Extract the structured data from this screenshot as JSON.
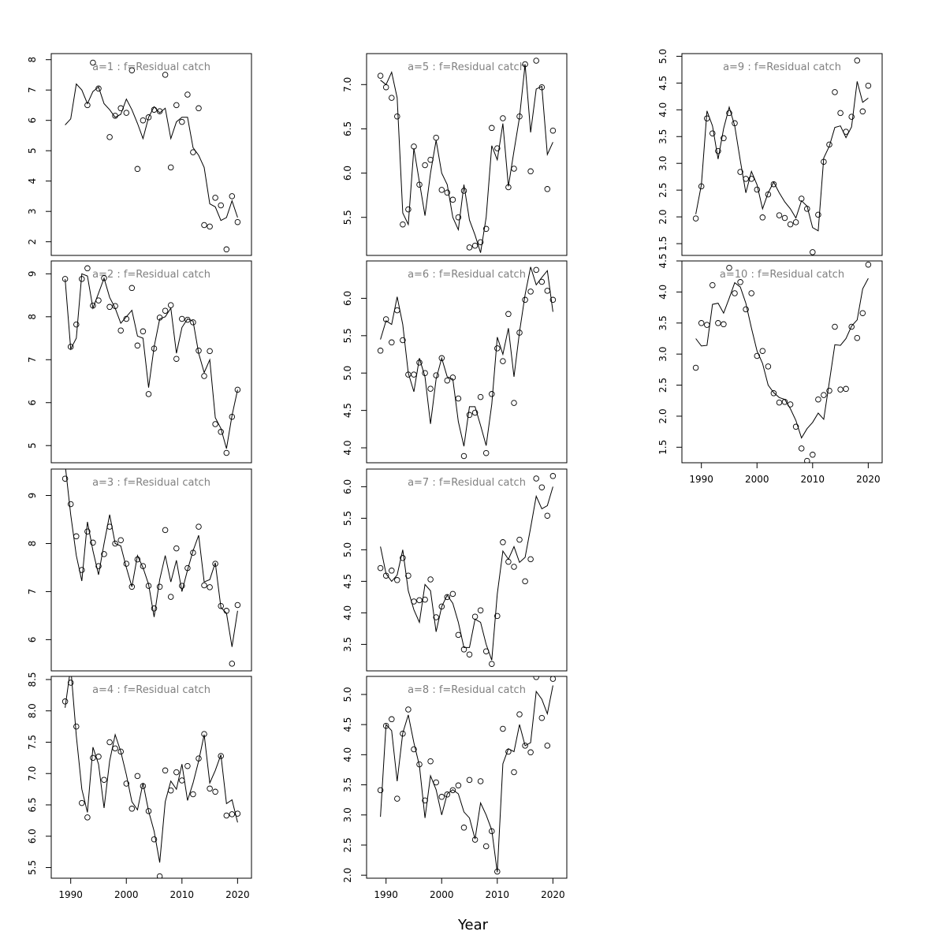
{
  "chart_data": {
    "type": "scatter",
    "xlabel": "Year",
    "x_years": [
      1989,
      1990,
      1991,
      1992,
      1993,
      1994,
      1995,
      1996,
      1997,
      1998,
      1999,
      2000,
      2001,
      2002,
      2003,
      2004,
      2005,
      2006,
      2007,
      2008,
      2009,
      2010,
      2011,
      2012,
      2013,
      2014,
      2015,
      2016,
      2017,
      2018,
      2019,
      2020
    ],
    "xlim": [
      1986.5,
      2022.5
    ],
    "xticks": [
      1990,
      2000,
      2010,
      2020
    ],
    "panels": [
      {
        "title": "a=1  :  f=Residual catch",
        "ylim": [
          1.55,
          8.2
        ],
        "yticks": [
          "2",
          "3",
          "4",
          "5",
          "6",
          "7",
          "8"
        ],
        "ytick_values": [
          2,
          3,
          4,
          5,
          6,
          7,
          8
        ],
        "points": [
          null,
          null,
          null,
          null,
          6.5,
          7.9,
          7.05,
          null,
          5.45,
          6.15,
          6.4,
          6.25,
          7.65,
          4.4,
          6.0,
          6.1,
          6.35,
          6.3,
          7.5,
          4.45,
          6.5,
          5.95,
          6.85,
          4.95,
          6.4,
          2.55,
          2.5,
          3.45,
          3.2,
          1.75,
          3.5,
          2.65
        ],
        "line": [
          5.85,
          6.05,
          7.2,
          7.0,
          6.55,
          6.95,
          7.1,
          6.55,
          6.35,
          6.1,
          6.2,
          6.7,
          6.35,
          5.9,
          5.4,
          6.1,
          6.45,
          6.25,
          6.4,
          5.4,
          5.95,
          6.1,
          6.1,
          5.1,
          4.85,
          4.45,
          3.25,
          3.15,
          2.7,
          2.8,
          3.35,
          2.8
        ]
      },
      {
        "title": "a=2  :  f=Residual catch",
        "ylim": [
          4.6,
          9.3
        ],
        "yticks": [
          "5",
          "6",
          "7",
          "8",
          "9"
        ],
        "ytick_values": [
          5,
          6,
          7,
          8,
          9
        ],
        "points": [
          8.88,
          7.3,
          7.82,
          8.88,
          9.13,
          8.26,
          8.38,
          8.9,
          8.23,
          8.25,
          7.68,
          7.95,
          8.67,
          7.33,
          7.66,
          6.2,
          7.26,
          7.98,
          8.14,
          8.27,
          7.02,
          7.95,
          7.93,
          7.87,
          7.21,
          6.62,
          7.2,
          5.5,
          5.32,
          4.83,
          5.67,
          6.3
        ],
        "line": [
          8.88,
          7.25,
          7.5,
          9.0,
          8.95,
          8.2,
          8.55,
          8.9,
          8.45,
          8.2,
          7.85,
          8.0,
          8.15,
          7.55,
          7.5,
          6.35,
          7.3,
          7.95,
          8.0,
          8.2,
          7.15,
          7.75,
          7.95,
          7.9,
          7.15,
          6.7,
          7.0,
          5.65,
          5.4,
          4.93,
          5.7,
          6.3
        ]
      },
      {
        "title": "a=3  :  f=Residual catch",
        "ylim": [
          5.35,
          9.55
        ],
        "yticks": [
          "6",
          "7",
          "8",
          "9"
        ],
        "ytick_values": [
          6,
          7,
          8,
          9
        ],
        "points": [
          9.35,
          8.82,
          8.15,
          7.45,
          8.25,
          8.02,
          7.53,
          7.78,
          8.35,
          8.0,
          8.07,
          7.58,
          7.1,
          7.67,
          7.53,
          7.12,
          6.65,
          7.1,
          8.28,
          6.89,
          7.9,
          7.12,
          7.49,
          7.81,
          8.35,
          7.13,
          7.09,
          7.58,
          6.7,
          6.6,
          5.5,
          6.72
        ],
        "line": [
          9.65,
          8.6,
          7.75,
          7.22,
          8.45,
          7.85,
          7.35,
          8.0,
          8.6,
          8.0,
          7.95,
          7.5,
          7.1,
          7.75,
          7.5,
          7.15,
          6.47,
          7.25,
          7.75,
          7.2,
          7.65,
          7.0,
          7.45,
          7.85,
          8.17,
          7.2,
          7.25,
          7.6,
          6.67,
          6.55,
          5.85,
          6.6
        ]
      },
      {
        "title": "a=4  :  f=Residual catch",
        "ylim": [
          5.33,
          8.55
        ],
        "yticks": [
          "5.5",
          "6.0",
          "6.5",
          "7.0",
          "7.5",
          "8.0",
          "8.5"
        ],
        "ytick_values": [
          5.5,
          6.0,
          6.5,
          7.0,
          7.5,
          8.0,
          8.5
        ],
        "points": [
          8.15,
          8.45,
          7.75,
          6.53,
          6.3,
          7.25,
          7.27,
          6.9,
          7.5,
          7.4,
          7.35,
          6.84,
          6.44,
          6.96,
          6.8,
          6.4,
          5.95,
          5.36,
          7.05,
          6.73,
          7.02,
          6.89,
          7.12,
          6.67,
          7.24,
          7.63,
          6.76,
          6.71,
          7.28,
          6.33,
          6.35,
          6.36
        ],
        "line": [
          8.05,
          8.7,
          7.6,
          6.75,
          6.38,
          7.42,
          7.15,
          6.45,
          7.2,
          7.62,
          7.35,
          6.98,
          6.55,
          6.42,
          6.85,
          6.4,
          6.08,
          5.58,
          6.55,
          6.88,
          6.75,
          7.15,
          6.57,
          6.85,
          7.2,
          7.62,
          6.85,
          7.05,
          7.3,
          6.52,
          6.58,
          6.22
        ]
      },
      {
        "title": "a=5  :  f=Residual catch",
        "ylim": [
          5.07,
          7.35
        ],
        "yticks": [
          "5.5",
          "6.0",
          "6.5",
          "7.0"
        ],
        "ytick_values": [
          5.5,
          6.0,
          6.5,
          7.0
        ],
        "points": [
          7.1,
          6.97,
          6.85,
          6.64,
          5.42,
          5.59,
          6.3,
          5.87,
          6.09,
          6.15,
          6.4,
          5.81,
          5.78,
          5.7,
          5.5,
          5.8,
          5.16,
          5.18,
          5.22,
          5.37,
          6.51,
          6.28,
          6.62,
          5.84,
          6.05,
          6.64,
          7.23,
          6.02,
          7.27,
          6.97,
          5.82,
          6.48
        ],
        "line": [
          7.05,
          7.0,
          7.14,
          6.85,
          5.55,
          5.42,
          6.28,
          5.9,
          5.52,
          6.0,
          6.37,
          6.0,
          5.87,
          5.5,
          5.36,
          5.87,
          5.47,
          5.3,
          5.1,
          5.5,
          6.31,
          6.15,
          6.56,
          5.85,
          6.25,
          6.63,
          7.23,
          6.46,
          6.95,
          6.98,
          6.21,
          6.35
        ]
      },
      {
        "title": "a=6  :  f=Residual catch",
        "ylim": [
          3.8,
          6.5
        ],
        "yticks": [
          "4.0",
          "4.5",
          "5.0",
          "5.5",
          "6.0"
        ],
        "ytick_values": [
          4.0,
          4.5,
          5.0,
          5.5,
          6.0
        ],
        "points": [
          5.3,
          5.72,
          5.41,
          5.84,
          5.44,
          4.98,
          4.98,
          5.14,
          5.0,
          4.79,
          4.97,
          5.2,
          4.9,
          4.94,
          4.66,
          3.89,
          4.44,
          4.47,
          4.68,
          3.93,
          4.72,
          5.33,
          5.16,
          5.79,
          4.6,
          5.54,
          5.98,
          6.09,
          6.38,
          6.22,
          6.1,
          5.98
        ],
        "line": [
          5.45,
          5.7,
          5.65,
          6.02,
          5.65,
          5.0,
          4.75,
          5.2,
          4.95,
          4.32,
          4.92,
          5.2,
          4.95,
          4.92,
          4.35,
          4.02,
          4.55,
          4.55,
          4.3,
          4.03,
          4.58,
          5.48,
          5.25,
          5.6,
          4.95,
          5.55,
          6.05,
          6.42,
          6.18,
          6.28,
          6.37,
          5.82
        ]
      },
      {
        "title": "a=7  :  f=Residual catch",
        "ylim": [
          3.08,
          6.28
        ],
        "yticks": [
          "3.5",
          "4.0",
          "4.5",
          "5.0",
          "5.5",
          "6.0"
        ],
        "ytick_values": [
          3.5,
          4.0,
          4.5,
          5.0,
          5.5,
          6.0
        ],
        "points": [
          4.71,
          4.59,
          4.67,
          4.52,
          4.87,
          4.59,
          4.18,
          4.2,
          4.21,
          4.53,
          3.93,
          4.1,
          4.25,
          4.3,
          3.65,
          3.42,
          3.34,
          3.94,
          4.04,
          3.39,
          3.19,
          3.95,
          5.12,
          4.81,
          4.73,
          5.16,
          4.5,
          4.85,
          6.13,
          5.99,
          5.54,
          6.17
        ],
        "line": [
          5.05,
          4.62,
          4.5,
          4.6,
          5.0,
          4.35,
          4.05,
          3.85,
          4.45,
          4.35,
          3.7,
          4.1,
          4.28,
          4.15,
          3.85,
          3.45,
          3.45,
          3.9,
          3.85,
          3.5,
          3.25,
          4.3,
          4.98,
          4.85,
          5.05,
          4.8,
          4.88,
          5.35,
          5.85,
          5.65,
          5.7,
          6.0
        ]
      },
      {
        "title": "a=8  :  f=Residual catch",
        "ylim": [
          1.95,
          5.3
        ],
        "yticks": [
          "2.0",
          "2.5",
          "3.0",
          "3.5",
          "4.0",
          "4.5",
          "5.0"
        ],
        "ytick_values": [
          2.0,
          2.5,
          3.0,
          3.5,
          4.0,
          4.5,
          5.0
        ],
        "points": [
          3.41,
          4.48,
          4.59,
          3.27,
          4.35,
          4.75,
          4.09,
          3.84,
          3.24,
          3.89,
          3.54,
          3.3,
          3.34,
          3.41,
          3.49,
          2.79,
          3.58,
          2.59,
          3.56,
          2.48,
          2.73,
          2.06,
          4.43,
          4.05,
          3.71,
          4.67,
          4.15,
          4.04,
          5.29,
          4.61,
          4.15,
          5.26
        ],
        "line": [
          2.97,
          4.5,
          4.4,
          3.56,
          4.36,
          4.66,
          4.2,
          3.82,
          2.95,
          3.65,
          3.42,
          3.0,
          3.35,
          3.42,
          3.35,
          3.05,
          2.95,
          2.6,
          3.2,
          3.0,
          2.75,
          2.05,
          3.85,
          4.1,
          4.05,
          4.5,
          4.15,
          4.2,
          5.05,
          4.92,
          4.68,
          5.15
        ]
      },
      {
        "title": "a=9  :  f=Residual catch",
        "ylim": [
          1.28,
          5.05
        ],
        "yticks": [
          "1.5",
          "2.0",
          "2.5",
          "3.0",
          "3.5",
          "4.0",
          "4.5",
          "5.0"
        ],
        "ytick_values": [
          1.5,
          2.0,
          2.5,
          3.0,
          3.5,
          4.0,
          4.5,
          5.0
        ],
        "points": [
          1.97,
          2.57,
          3.84,
          3.56,
          3.23,
          3.47,
          3.94,
          3.75,
          2.84,
          2.71,
          2.71,
          2.51,
          1.99,
          2.42,
          2.61,
          2.03,
          1.98,
          1.86,
          1.9,
          2.34,
          2.15,
          1.34,
          2.04,
          3.03,
          3.35,
          4.33,
          3.94,
          3.59,
          3.87,
          4.92,
          3.97,
          4.45
        ],
        "line": [
          2.05,
          2.6,
          3.98,
          3.7,
          3.08,
          3.65,
          4.05,
          3.7,
          3.05,
          2.45,
          2.85,
          2.6,
          2.15,
          2.45,
          2.65,
          2.45,
          2.28,
          2.15,
          1.98,
          2.3,
          2.2,
          1.8,
          1.74,
          3.1,
          3.32,
          3.67,
          3.7,
          3.48,
          3.68,
          4.53,
          4.14,
          4.22
        ]
      },
      {
        "title": "a=10  :  f=Residual catch",
        "ylim": [
          1.25,
          4.5
        ],
        "yticks": [
          "1.5",
          "2.0",
          "2.5",
          "3.0",
          "3.5",
          "4.0",
          "4.5"
        ],
        "ytick_values": [
          1.5,
          2.0,
          2.5,
          3.0,
          3.5,
          4.0,
          4.5
        ],
        "points": [
          2.78,
          3.5,
          3.47,
          4.11,
          3.5,
          3.48,
          4.39,
          3.98,
          4.16,
          3.72,
          3.98,
          2.97,
          3.05,
          2.8,
          2.37,
          2.22,
          2.23,
          2.19,
          1.83,
          1.48,
          1.28,
          1.38,
          2.27,
          2.34,
          2.41,
          3.44,
          2.43,
          2.44,
          3.44,
          3.26,
          3.66,
          4.44
        ],
        "line": [
          3.25,
          3.13,
          3.14,
          3.8,
          3.82,
          3.66,
          3.9,
          4.15,
          4.08,
          3.82,
          3.42,
          3.05,
          2.85,
          2.5,
          2.38,
          2.3,
          2.27,
          2.12,
          1.93,
          1.65,
          1.8,
          1.9,
          2.05,
          1.95,
          2.55,
          3.15,
          3.14,
          3.25,
          3.45,
          3.55,
          4.05,
          4.22
        ]
      }
    ]
  }
}
